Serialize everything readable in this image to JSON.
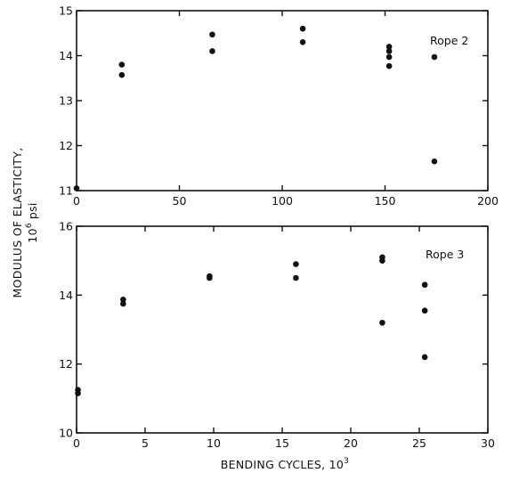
{
  "chart_data": [
    {
      "type": "scatter",
      "panel_label": "Rope 2",
      "xlim": [
        0,
        200
      ],
      "ylim": [
        11,
        15
      ],
      "xticks": [
        0,
        50,
        100,
        150,
        200
      ],
      "yticks": [
        11,
        12,
        13,
        14,
        15
      ],
      "series": [
        {
          "points": [
            [
              0,
              11.05
            ],
            [
              22,
              13.8
            ],
            [
              22,
              13.57
            ],
            [
              66,
              14.47
            ],
            [
              66,
              14.1
            ],
            [
              110,
              14.6
            ],
            [
              110,
              14.3
            ],
            [
              152,
              14.2
            ],
            [
              152,
              14.1
            ],
            [
              152,
              13.97
            ],
            [
              152,
              13.77
            ],
            [
              174,
              13.97
            ],
            [
              174,
              11.65
            ]
          ]
        }
      ]
    },
    {
      "type": "scatter",
      "panel_label": "Rope 3",
      "xlim": [
        0,
        30
      ],
      "ylim": [
        10,
        16
      ],
      "xticks": [
        0,
        5,
        10,
        15,
        20,
        25,
        30
      ],
      "yticks": [
        10,
        12,
        14,
        16
      ],
      "series": [
        {
          "points": [
            [
              0.1,
              11.25
            ],
            [
              0.1,
              11.15
            ],
            [
              3.4,
              13.87
            ],
            [
              3.4,
              13.75
            ],
            [
              9.7,
              14.55
            ],
            [
              9.7,
              14.5
            ],
            [
              16,
              14.9
            ],
            [
              16,
              14.5
            ],
            [
              22.3,
              15.1
            ],
            [
              22.3,
              15.0
            ],
            [
              22.3,
              13.2
            ],
            [
              25.4,
              14.3
            ],
            [
              25.4,
              13.55
            ],
            [
              25.4,
              12.2
            ]
          ]
        }
      ]
    }
  ],
  "axes": {
    "ylabel_line1": "MODULUS OF ELASTICITY,",
    "ylabel_line2_base": "10",
    "ylabel_line2_exp": "6",
    "ylabel_line2_unit": "psi",
    "xlabel_base": "BENDING CYCLES, 10",
    "xlabel_exp": "3"
  }
}
